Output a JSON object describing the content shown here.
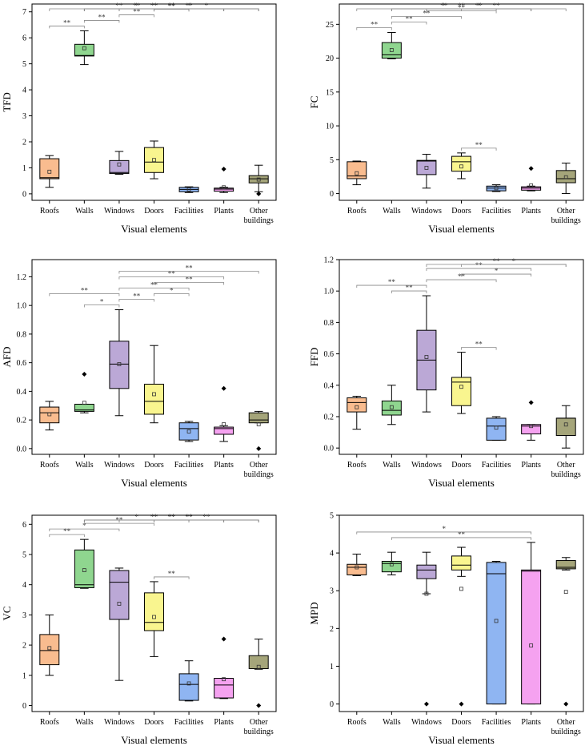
{
  "chart_data": [
    {
      "type": "box",
      "ylabel": "TFD",
      "xlabel": "Visual elements",
      "ylim": [
        -0.25,
        7.3
      ],
      "yticks": [
        0,
        1,
        2,
        3,
        4,
        5,
        6,
        7
      ],
      "categories": [
        "Roofs",
        "Walls",
        "Windows",
        "Doors",
        "Facilities",
        "Plants",
        "Other buildings"
      ],
      "boxes": [
        {
          "min": 0.25,
          "q1": 0.58,
          "median": 0.62,
          "q3": 1.35,
          "max": 1.47,
          "mean": 0.85,
          "outliers": []
        },
        {
          "min": 4.97,
          "q1": 5.3,
          "median": 5.32,
          "q3": 5.75,
          "max": 6.27,
          "mean": 5.6,
          "outliers": []
        },
        {
          "min": 0.75,
          "q1": 0.78,
          "median": 0.82,
          "q3": 1.28,
          "max": 1.63,
          "mean": 1.13,
          "outliers": []
        },
        {
          "min": 0.58,
          "q1": 0.82,
          "median": 1.22,
          "q3": 1.78,
          "max": 2.03,
          "mean": 1.3,
          "outliers": []
        },
        {
          "min": 0.05,
          "q1": 0.08,
          "median": 0.17,
          "q3": 0.25,
          "max": 0.27,
          "mean": 0.17,
          "outliers": []
        },
        {
          "min": 0.05,
          "q1": 0.1,
          "median": 0.18,
          "q3": 0.22,
          "max": 0.25,
          "mean": 0.25,
          "outliers": [
            0.95
          ]
        },
        {
          "min": 0.08,
          "q1": 0.42,
          "median": 0.58,
          "q3": 0.7,
          "max": 1.1,
          "mean": 0.55,
          "outliers": [
            0.0
          ]
        }
      ],
      "significance": [
        {
          "pair": [
            1,
            2
          ],
          "label": "**"
        },
        {
          "pair": [
            1,
            6
          ],
          "label": "*"
        },
        {
          "pair": [
            2,
            7
          ],
          "label": "**"
        },
        {
          "pair": [
            2,
            6
          ],
          "label": "**"
        },
        {
          "pair": [
            2,
            5
          ],
          "label": "**"
        },
        {
          "pair": [
            2,
            4
          ],
          "label": "**"
        },
        {
          "pair": [
            2,
            3
          ],
          "label": "**"
        },
        {
          "pair": [
            3,
            7
          ],
          "label": "*"
        },
        {
          "pair": [
            3,
            6
          ],
          "label": "**"
        },
        {
          "pair": [
            3,
            5
          ],
          "label": "**"
        },
        {
          "pair": [
            3,
            4
          ],
          "label": "**"
        },
        {
          "pair": [
            4,
            7
          ],
          "label": "*"
        },
        {
          "pair": [
            4,
            6
          ],
          "label": "**"
        },
        {
          "pair": [
            4,
            5
          ],
          "label": "**"
        }
      ]
    },
    {
      "type": "box",
      "ylabel": "FC",
      "xlabel": "Visual elements",
      "ylim": [
        -1,
        28
      ],
      "yticks": [
        0,
        5,
        10,
        15,
        20,
        25
      ],
      "categories": [
        "Roofs",
        "Walls",
        "Windows",
        "Doors",
        "Facilities",
        "Plants",
        "Other buildings"
      ],
      "boxes": [
        {
          "min": 1.3,
          "q1": 2.2,
          "median": 2.6,
          "q3": 4.7,
          "max": 4.8,
          "mean": 3.0,
          "outliers": []
        },
        {
          "min": 19.9,
          "q1": 20.0,
          "median": 20.5,
          "q3": 22.3,
          "max": 23.8,
          "mean": 21.2,
          "outliers": []
        },
        {
          "min": 0.8,
          "q1": 2.8,
          "median": 4.8,
          "q3": 4.9,
          "max": 5.8,
          "mean": 3.8,
          "outliers": []
        },
        {
          "min": 2.2,
          "q1": 3.3,
          "median": 4.7,
          "q3": 5.5,
          "max": 6.0,
          "mean": 4.0,
          "outliers": []
        },
        {
          "min": 0.3,
          "q1": 0.4,
          "median": 0.8,
          "q3": 1.1,
          "max": 1.3,
          "mean": 0.8,
          "outliers": []
        },
        {
          "min": 0.4,
          "q1": 0.5,
          "median": 0.8,
          "q3": 1.0,
          "max": 1.1,
          "mean": 1.2,
          "outliers": [
            3.7
          ]
        },
        {
          "min": 0.0,
          "q1": 1.6,
          "median": 2.2,
          "q3": 3.4,
          "max": 4.5,
          "mean": 2.4,
          "outliers": []
        }
      ],
      "significance": [
        {
          "pair": [
            1,
            2
          ],
          "label": "**"
        },
        {
          "pair": [
            1,
            6
          ],
          "label": "*"
        },
        {
          "pair": [
            2,
            7
          ],
          "label": "**"
        },
        {
          "pair": [
            2,
            6
          ],
          "label": "**"
        },
        {
          "pair": [
            2,
            5
          ],
          "label": "**"
        },
        {
          "pair": [
            2,
            4
          ],
          "label": "**"
        },
        {
          "pair": [
            2,
            3
          ],
          "label": "**"
        },
        {
          "pair": [
            3,
            6
          ],
          "label": "*"
        },
        {
          "pair": [
            3,
            5
          ],
          "label": "**"
        },
        {
          "pair": [
            4,
            6
          ],
          "label": "**"
        },
        {
          "pair": [
            4,
            5
          ],
          "label": "**"
        }
      ]
    },
    {
      "type": "box",
      "ylabel": "AFD",
      "xlabel": "Visual elements",
      "ylim": [
        -0.04,
        1.32
      ],
      "yticks": [
        0.0,
        0.2,
        0.4,
        0.6,
        0.8,
        1.0,
        1.2
      ],
      "categories": [
        "Roofs",
        "Walls",
        "Windows",
        "Doors",
        "Facilities",
        "Plants",
        "Other buildings"
      ],
      "boxes": [
        {
          "min": 0.13,
          "q1": 0.18,
          "median": 0.25,
          "q3": 0.29,
          "max": 0.33,
          "mean": 0.24,
          "outliers": []
        },
        {
          "min": 0.25,
          "q1": 0.26,
          "median": 0.27,
          "q3": 0.31,
          "max": 0.31,
          "mean": 0.32,
          "outliers": [
            0.52
          ]
        },
        {
          "min": 0.23,
          "q1": 0.42,
          "median": 0.59,
          "q3": 0.75,
          "max": 0.97,
          "mean": 0.59,
          "outliers": []
        },
        {
          "min": 0.18,
          "q1": 0.24,
          "median": 0.33,
          "q3": 0.45,
          "max": 0.72,
          "mean": 0.38,
          "outliers": []
        },
        {
          "min": 0.05,
          "q1": 0.06,
          "median": 0.14,
          "q3": 0.18,
          "max": 0.19,
          "mean": 0.12,
          "outliers": []
        },
        {
          "min": 0.05,
          "q1": 0.1,
          "median": 0.14,
          "q3": 0.15,
          "max": 0.16,
          "mean": 0.17,
          "outliers": [
            0.42
          ]
        },
        {
          "min": 0.18,
          "q1": 0.18,
          "median": 0.2,
          "q3": 0.25,
          "max": 0.26,
          "mean": 0.17,
          "outliers": [
            0.0
          ]
        }
      ],
      "significance": [
        {
          "pair": [
            1,
            3
          ],
          "label": "**"
        },
        {
          "pair": [
            2,
            3
          ],
          "label": "*"
        },
        {
          "pair": [
            3,
            7
          ],
          "label": "**"
        },
        {
          "pair": [
            3,
            6
          ],
          "label": "**"
        },
        {
          "pair": [
            3,
            5
          ],
          "label": "**"
        },
        {
          "pair": [
            3,
            4
          ],
          "label": "**"
        },
        {
          "pair": [
            4,
            6
          ],
          "label": "**"
        },
        {
          "pair": [
            4,
            5
          ],
          "label": "*"
        }
      ]
    },
    {
      "type": "box",
      "ylabel": "FFD",
      "xlabel": "Visual elements",
      "ylim": [
        -0.04,
        1.2
      ],
      "yticks": [
        0.0,
        0.2,
        0.4,
        0.6,
        0.8,
        1.0,
        1.2
      ],
      "categories": [
        "Roofs",
        "Walls",
        "Windows",
        "Doors",
        "Facilities",
        "Plants",
        "Other buildings"
      ],
      "boxes": [
        {
          "min": 0.12,
          "q1": 0.23,
          "median": 0.29,
          "q3": 0.32,
          "max": 0.33,
          "mean": 0.26,
          "outliers": []
        },
        {
          "min": 0.15,
          "q1": 0.21,
          "median": 0.24,
          "q3": 0.3,
          "max": 0.4,
          "mean": 0.26,
          "outliers": []
        },
        {
          "min": 0.23,
          "q1": 0.37,
          "median": 0.56,
          "q3": 0.75,
          "max": 0.97,
          "mean": 0.58,
          "outliers": []
        },
        {
          "min": 0.22,
          "q1": 0.27,
          "median": 0.42,
          "q3": 0.45,
          "max": 0.61,
          "mean": 0.39,
          "outliers": []
        },
        {
          "min": 0.05,
          "q1": 0.05,
          "median": 0.14,
          "q3": 0.19,
          "max": 0.2,
          "mean": 0.13,
          "outliers": []
        },
        {
          "min": 0.05,
          "q1": 0.09,
          "median": 0.14,
          "q3": 0.15,
          "max": 0.15,
          "mean": 0.14,
          "outliers": [
            0.29
          ]
        },
        {
          "min": 0.0,
          "q1": 0.08,
          "median": 0.19,
          "q3": 0.19,
          "max": 0.27,
          "mean": 0.15,
          "outliers": []
        }
      ],
      "significance": [
        {
          "pair": [
            1,
            3
          ],
          "label": "**"
        },
        {
          "pair": [
            2,
            3
          ],
          "label": "**"
        },
        {
          "pair": [
            3,
            7
          ],
          "label": "**"
        },
        {
          "pair": [
            3,
            6
          ],
          "label": "**"
        },
        {
          "pair": [
            3,
            5
          ],
          "label": "**"
        },
        {
          "pair": [
            4,
            7
          ],
          "label": "*"
        },
        {
          "pair": [
            4,
            6
          ],
          "label": "*"
        },
        {
          "pair": [
            4,
            5
          ],
          "label": "**"
        }
      ]
    },
    {
      "type": "box",
      "ylabel": "VC",
      "xlabel": "Visual elements",
      "ylim": [
        -0.2,
        6.3
      ],
      "yticks": [
        0,
        1,
        2,
        3,
        4,
        5,
        6
      ],
      "categories": [
        "Roofs",
        "Walls",
        "Windows",
        "Doors",
        "Facilities",
        "Plants",
        "Other buildings"
      ],
      "boxes": [
        {
          "min": 1.0,
          "q1": 1.35,
          "median": 1.82,
          "q3": 2.35,
          "max": 3.0,
          "mean": 1.9,
          "outliers": []
        },
        {
          "min": 3.88,
          "q1": 3.9,
          "median": 4.0,
          "q3": 5.15,
          "max": 5.5,
          "mean": 4.48,
          "outliers": []
        },
        {
          "min": 0.83,
          "q1": 2.85,
          "median": 4.08,
          "q3": 4.47,
          "max": 4.55,
          "mean": 3.37,
          "outliers": []
        },
        {
          "min": 1.62,
          "q1": 2.48,
          "median": 2.75,
          "q3": 3.73,
          "max": 4.1,
          "mean": 2.93,
          "outliers": []
        },
        {
          "min": 0.15,
          "q1": 0.17,
          "median": 0.7,
          "q3": 1.05,
          "max": 1.48,
          "mean": 0.73,
          "outliers": []
        },
        {
          "min": 0.23,
          "q1": 0.25,
          "median": 0.68,
          "q3": 0.9,
          "max": 0.9,
          "mean": 0.87,
          "outliers": [
            2.2
          ]
        },
        {
          "min": 1.2,
          "q1": 1.22,
          "median": 1.22,
          "q3": 1.65,
          "max": 2.2,
          "mean": 1.28,
          "outliers": [
            0.0
          ]
        }
      ],
      "significance": [
        {
          "pair": [
            1,
            2
          ],
          "label": "**"
        },
        {
          "pair": [
            1,
            3
          ],
          "label": "*"
        },
        {
          "pair": [
            2,
            7
          ],
          "label": "**"
        },
        {
          "pair": [
            2,
            6
          ],
          "label": "**"
        },
        {
          "pair": [
            2,
            5
          ],
          "label": "*"
        },
        {
          "pair": [
            2,
            4
          ],
          "label": "**"
        },
        {
          "pair": [
            3,
            7
          ],
          "label": "**"
        },
        {
          "pair": [
            3,
            6
          ],
          "label": "**"
        },
        {
          "pair": [
            3,
            5
          ],
          "label": "**"
        },
        {
          "pair": [
            4,
            7
          ],
          "label": "**"
        },
        {
          "pair": [
            4,
            6
          ],
          "label": "**"
        },
        {
          "pair": [
            4,
            5
          ],
          "label": "**"
        }
      ]
    },
    {
      "type": "box",
      "ylabel": "MPD",
      "xlabel": "Visual elements",
      "ylim": [
        -0.2,
        5.0
      ],
      "yticks": [
        0,
        1,
        2,
        3,
        4,
        5
      ],
      "categories": [
        "Roofs",
        "Walls",
        "Windows",
        "Doors",
        "Facilities",
        "Plants",
        "Other buildings"
      ],
      "boxes": [
        {
          "min": 3.4,
          "q1": 3.42,
          "median": 3.62,
          "q3": 3.7,
          "max": 3.97,
          "mean": 3.62,
          "outliers": []
        },
        {
          "min": 3.42,
          "q1": 3.5,
          "median": 3.72,
          "q3": 3.78,
          "max": 4.02,
          "mean": 3.7,
          "outliers": []
        },
        {
          "min": 2.92,
          "q1": 3.32,
          "median": 3.55,
          "q3": 3.68,
          "max": 4.02,
          "mean": 2.92,
          "outliers": [
            0.0
          ]
        },
        {
          "min": 3.38,
          "q1": 3.55,
          "median": 3.68,
          "q3": 3.92,
          "max": 4.15,
          "mean": 3.05,
          "outliers": [
            0.0
          ]
        },
        {
          "min": 0.0,
          "q1": 0.0,
          "median": 3.45,
          "q3": 3.75,
          "max": 3.78,
          "mean": 2.2,
          "outliers": []
        },
        {
          "min": 0.0,
          "q1": 0.0,
          "median": 3.52,
          "q3": 3.55,
          "max": 4.28,
          "mean": 1.55,
          "outliers": []
        },
        {
          "min": 3.55,
          "q1": 3.58,
          "median": 3.62,
          "q3": 3.8,
          "max": 3.88,
          "mean": 2.97,
          "outliers": [
            0.0
          ]
        }
      ],
      "significance": [
        {
          "pair": [
            1,
            6
          ],
          "label": "*"
        },
        {
          "pair": [
            2,
            6
          ],
          "label": "**"
        }
      ]
    }
  ],
  "colors": [
    "#f9bc8f",
    "#8fd68f",
    "#bba8d6",
    "#f9f58f",
    "#8fb5f2",
    "#f5a2f0",
    "#a5a57a"
  ]
}
